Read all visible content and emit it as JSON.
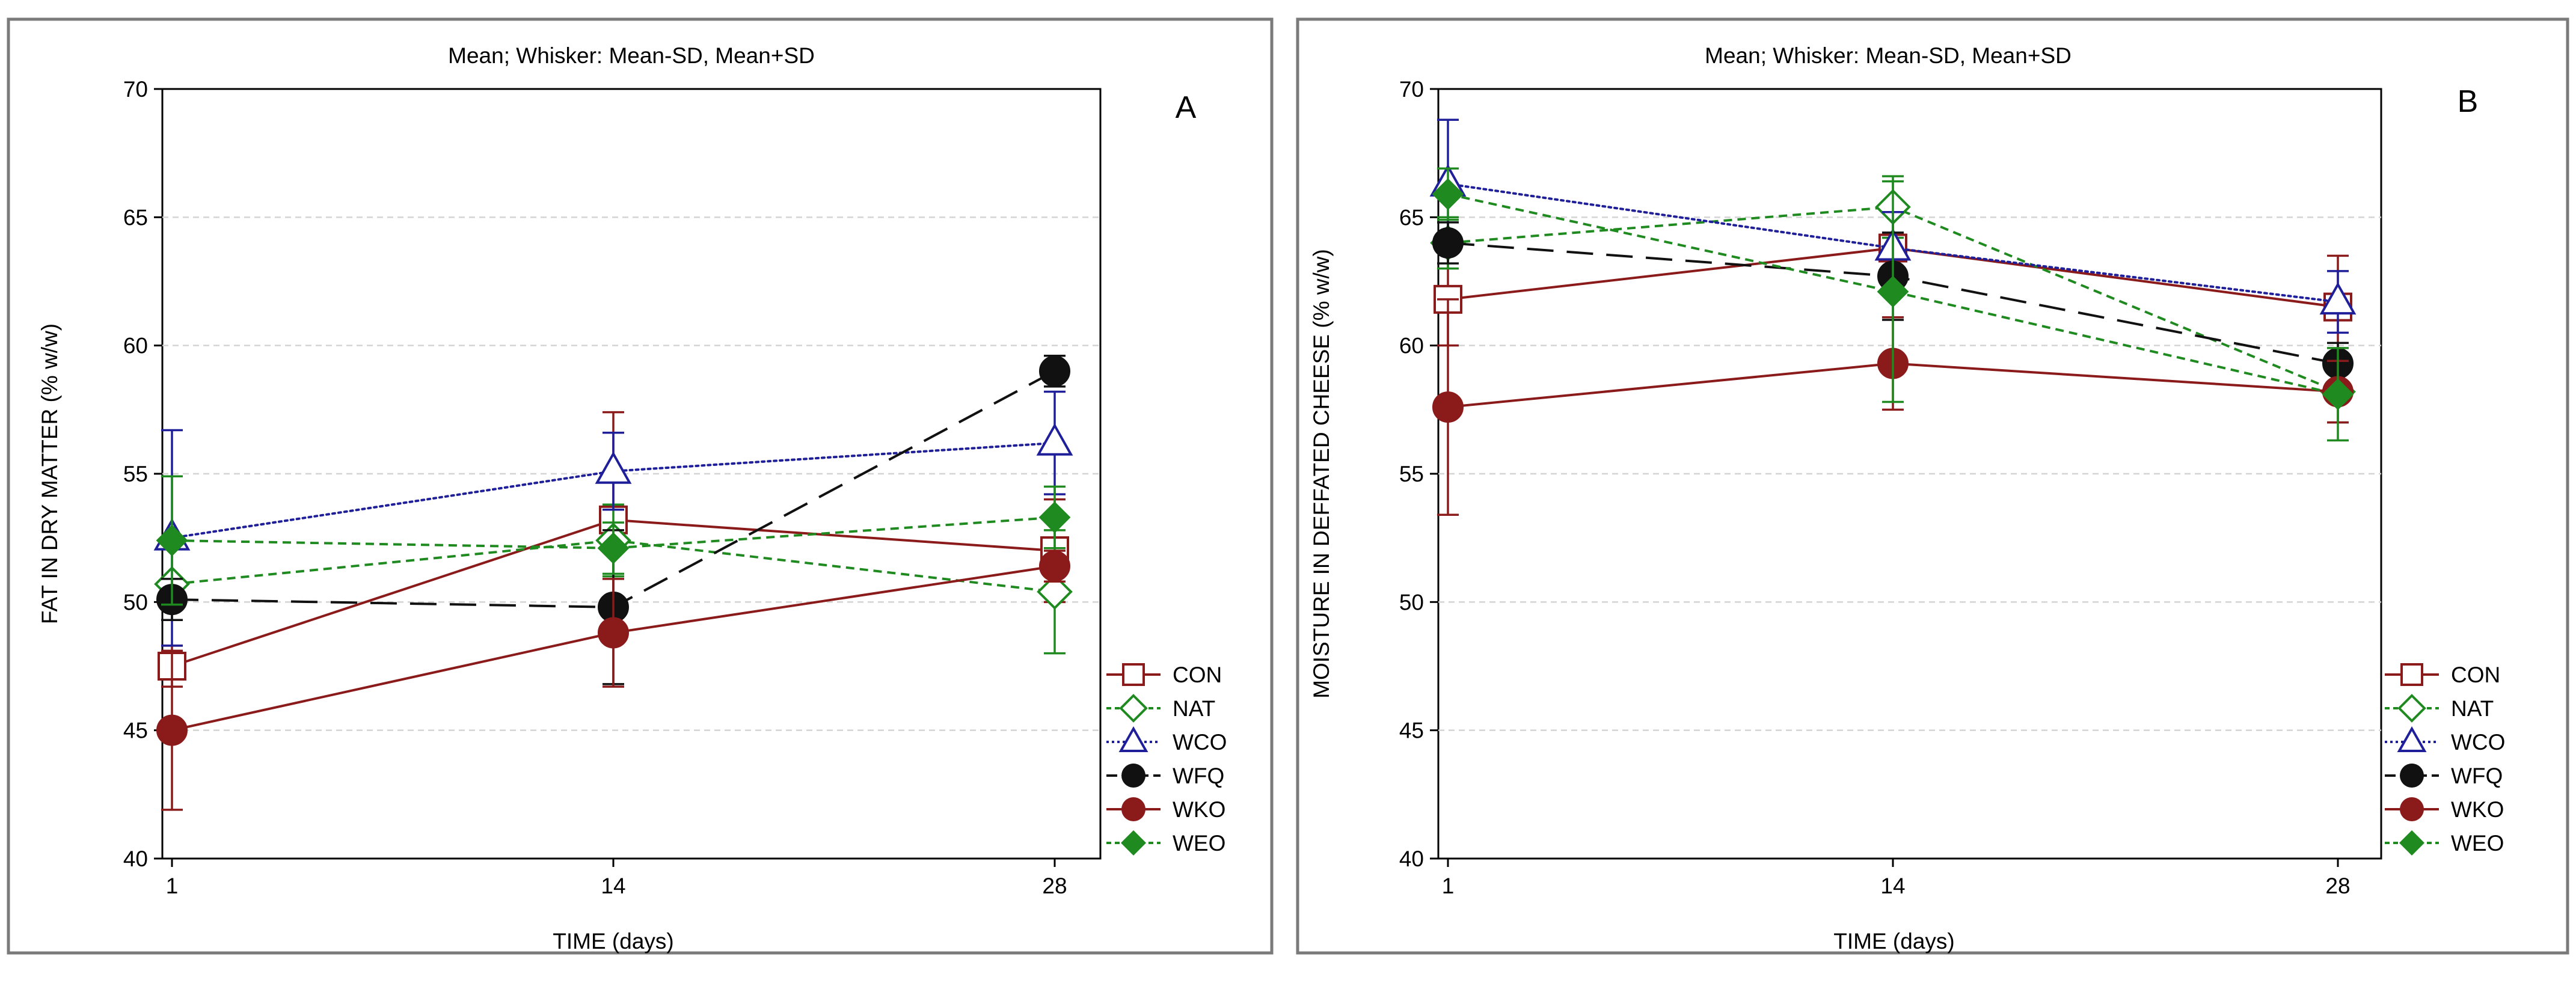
{
  "chart_data": [
    {
      "type": "line",
      "panel_label": "A",
      "title": "Mean;  Whisker: Mean-SD, Mean+SD",
      "xlabel": "TIME (days)",
      "ylabel": "FAT IN DRY MATTER (% w/w)",
      "categories": [
        "1",
        "14",
        "28"
      ],
      "ylim": [
        40,
        70
      ],
      "yticks": [
        "40",
        "45",
        "50",
        "55",
        "60",
        "65",
        "70"
      ],
      "grid": "horizontal dashed",
      "legend_position": "bottom-right",
      "series": [
        {
          "name": "CON",
          "values": [
            47.5,
            53.2,
            52.0
          ],
          "lower": [
            46.7,
            49.0,
            50.0
          ],
          "upper": [
            48.3,
            57.4,
            54.0
          ]
        },
        {
          "name": "NAT",
          "values": [
            50.7,
            52.4,
            50.4
          ],
          "lower": [
            49.3,
            51.0,
            48.0
          ],
          "upper": [
            52.1,
            53.8,
            52.8
          ]
        },
        {
          "name": "WCO",
          "values": [
            52.5,
            55.1,
            56.2
          ],
          "lower": [
            48.3,
            53.6,
            54.2
          ],
          "upper": [
            56.7,
            56.6,
            58.2
          ]
        },
        {
          "name": "WFQ",
          "values": [
            50.1,
            49.8,
            59.0
          ],
          "lower": [
            49.3,
            46.8,
            58.4
          ],
          "upper": [
            50.9,
            52.8,
            59.6
          ]
        },
        {
          "name": "WKO",
          "values": [
            45.0,
            48.8,
            51.4
          ],
          "lower": [
            41.9,
            46.7,
            50.8
          ],
          "upper": [
            48.1,
            50.9,
            52.0
          ]
        },
        {
          "name": "WEO",
          "values": [
            52.4,
            52.1,
            53.3
          ],
          "lower": [
            49.9,
            51.1,
            52.1
          ],
          "upper": [
            54.9,
            53.1,
            54.5
          ]
        }
      ]
    },
    {
      "type": "line",
      "panel_label": "B",
      "title": "Mean;  Whisker: Mean-SD, Mean+SD",
      "xlabel": "TIME (days)",
      "ylabel": "MOISTURE IN DEFFATED CHEESE (% w/w)",
      "categories": [
        "1",
        "14",
        "28"
      ],
      "ylim": [
        40,
        70
      ],
      "yticks": [
        "40",
        "45",
        "50",
        "55",
        "60",
        "65",
        "70"
      ],
      "grid": "horizontal dashed",
      "legend_position": "bottom-right",
      "series": [
        {
          "name": "CON",
          "values": [
            61.8,
            63.8,
            61.5
          ],
          "lower": [
            60.0,
            62.4,
            59.5
          ],
          "upper": [
            63.6,
            65.2,
            63.5
          ]
        },
        {
          "name": "NAT",
          "values": [
            64.0,
            65.4,
            58.2
          ],
          "lower": [
            63.0,
            64.2,
            57.0
          ],
          "upper": [
            65.0,
            66.6,
            59.4
          ]
        },
        {
          "name": "WCO",
          "values": [
            66.3,
            63.8,
            61.7
          ],
          "lower": [
            63.8,
            62.4,
            60.5
          ],
          "upper": [
            68.8,
            65.2,
            62.9
          ]
        },
        {
          "name": "WFQ",
          "values": [
            64.0,
            62.7,
            59.3
          ],
          "lower": [
            63.2,
            61.0,
            58.5
          ],
          "upper": [
            64.8,
            64.4,
            60.1
          ]
        },
        {
          "name": "WKO",
          "values": [
            57.6,
            59.3,
            58.2
          ],
          "lower": [
            53.4,
            57.5,
            57.0
          ],
          "upper": [
            61.8,
            61.1,
            59.4
          ]
        },
        {
          "name": "WEO",
          "values": [
            65.9,
            62.1,
            58.1
          ],
          "lower": [
            64.9,
            57.8,
            56.3
          ],
          "upper": [
            66.9,
            66.4,
            59.9
          ]
        }
      ]
    }
  ],
  "series_styles": {
    "CON": {
      "color": "#8b1a1a",
      "marker": "open-square",
      "dash": "solid"
    },
    "NAT": {
      "color": "#1f8a1f",
      "marker": "open-diamond",
      "dash": "short-dash"
    },
    "WCO": {
      "color": "#1f1f9a",
      "marker": "open-triangle",
      "dash": "dotted"
    },
    "WFQ": {
      "color": "#111111",
      "marker": "filled-circle",
      "dash": "long-dash"
    },
    "WKO": {
      "color": "#8b1a1a",
      "marker": "filled-circle",
      "dash": "solid"
    },
    "WEO": {
      "color": "#1f8a1f",
      "marker": "filled-diamond",
      "dash": "short-dash"
    }
  }
}
